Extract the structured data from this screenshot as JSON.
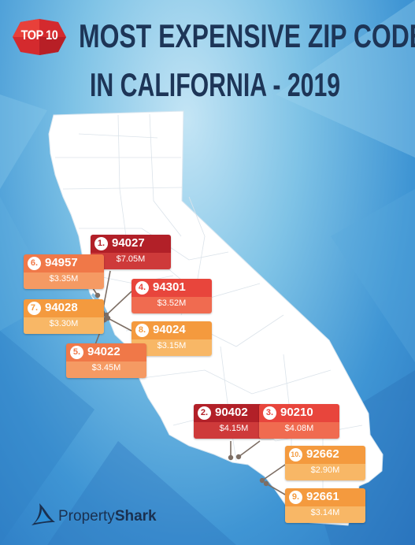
{
  "badge": {
    "label": "TOP 10"
  },
  "title": {
    "line1": "MOST EXPENSIVE ZIP CODES",
    "line2": "IN CALIFORNIA - 2019"
  },
  "entries": [
    {
      "rank": "1.",
      "zip": "94027",
      "price": "$7.05M",
      "color": "#b22028"
    },
    {
      "rank": "2.",
      "zip": "90402",
      "price": "$4.15M",
      "color": "#b22028"
    },
    {
      "rank": "3.",
      "zip": "90210",
      "price": "$4.08M",
      "color": "#e8453c"
    },
    {
      "rank": "4.",
      "zip": "94301",
      "price": "$3.52M",
      "color": "#e8453c"
    },
    {
      "rank": "5.",
      "zip": "94022",
      "price": "$3.45M",
      "color": "#f07848"
    },
    {
      "rank": "6.",
      "zip": "94957",
      "price": "$3.35M",
      "color": "#f07848"
    },
    {
      "rank": "7.",
      "zip": "94028",
      "price": "$3.30M",
      "color": "#f49a3e"
    },
    {
      "rank": "8.",
      "zip": "94024",
      "price": "$3.15M",
      "color": "#f49a3e"
    },
    {
      "rank": "9.",
      "zip": "92661",
      "price": "$3.14M",
      "color": "#f49a3e"
    },
    {
      "rank": "10.",
      "zip": "92662",
      "price": "$2.90M",
      "color": "#f49a3e"
    }
  ],
  "brand": {
    "name_part1": "Property",
    "name_part2": "Shark"
  },
  "colors": {
    "title": "#1d3557",
    "map_fill": "#ffffff",
    "background": "#3f95d4"
  }
}
